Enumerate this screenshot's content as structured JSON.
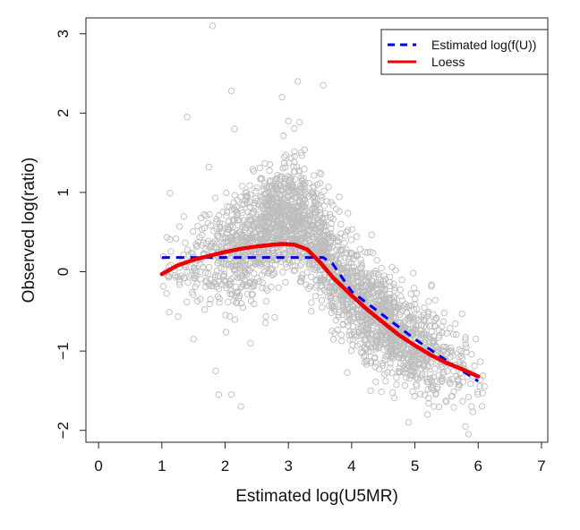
{
  "chart_data": {
    "type": "scatter",
    "title": "",
    "xlabel": "Estimated log(U5MR)",
    "ylabel": "Observed log(ratio)",
    "xlim": [
      -0.2,
      7.1
    ],
    "ylim": [
      -2.15,
      3.2
    ],
    "xticks": [
      0,
      1,
      2,
      3,
      4,
      5,
      6,
      7
    ],
    "yticks": [
      -2,
      -1,
      0,
      1,
      2,
      3
    ],
    "grid": false,
    "legend_position": "top-right",
    "colors": {
      "points": "#bdbdbd",
      "estimated": "#0000ee",
      "loess": "#ee0000",
      "axis": "#222222"
    },
    "series": [
      {
        "name": "Estimated log(f(U))",
        "style": "dashed",
        "x": [
          1.0,
          3.55,
          3.7,
          4.0,
          4.5,
          5.0,
          5.5,
          6.0
        ],
        "y": [
          0.18,
          0.18,
          0.1,
          -0.25,
          -0.55,
          -0.85,
          -1.12,
          -1.38
        ]
      },
      {
        "name": "Loess",
        "style": "solid",
        "x": [
          1.0,
          1.25,
          1.5,
          1.75,
          2.0,
          2.25,
          2.5,
          2.75,
          2.9,
          3.1,
          3.3,
          3.5,
          3.7,
          4.0,
          4.25,
          4.5,
          4.75,
          5.0,
          5.25,
          5.5,
          5.75,
          6.0
        ],
        "y": [
          -0.03,
          0.08,
          0.15,
          0.2,
          0.25,
          0.29,
          0.32,
          0.34,
          0.35,
          0.34,
          0.28,
          0.12,
          -0.07,
          -0.3,
          -0.48,
          -0.64,
          -0.8,
          -0.93,
          -1.05,
          -1.15,
          -1.23,
          -1.32
        ]
      }
    ],
    "scatter": {
      "name": "observed",
      "outliers_x": [
        1.8,
        1.4,
        2.1,
        2.15,
        3.15,
        3.55,
        2.9,
        1.85,
        1.9,
        2.25,
        2.1,
        3.0,
        5.8,
        5.85,
        4.9,
        5.2,
        5.3,
        4.3,
        1.5,
        2.4
      ],
      "outliers_y": [
        3.1,
        1.95,
        2.28,
        1.8,
        2.4,
        2.35,
        2.2,
        -1.25,
        -1.55,
        -1.7,
        -1.55,
        1.9,
        -1.95,
        -2.05,
        -1.9,
        -1.8,
        -1.7,
        -1.5,
        -0.85,
        -0.9
      ]
    }
  }
}
